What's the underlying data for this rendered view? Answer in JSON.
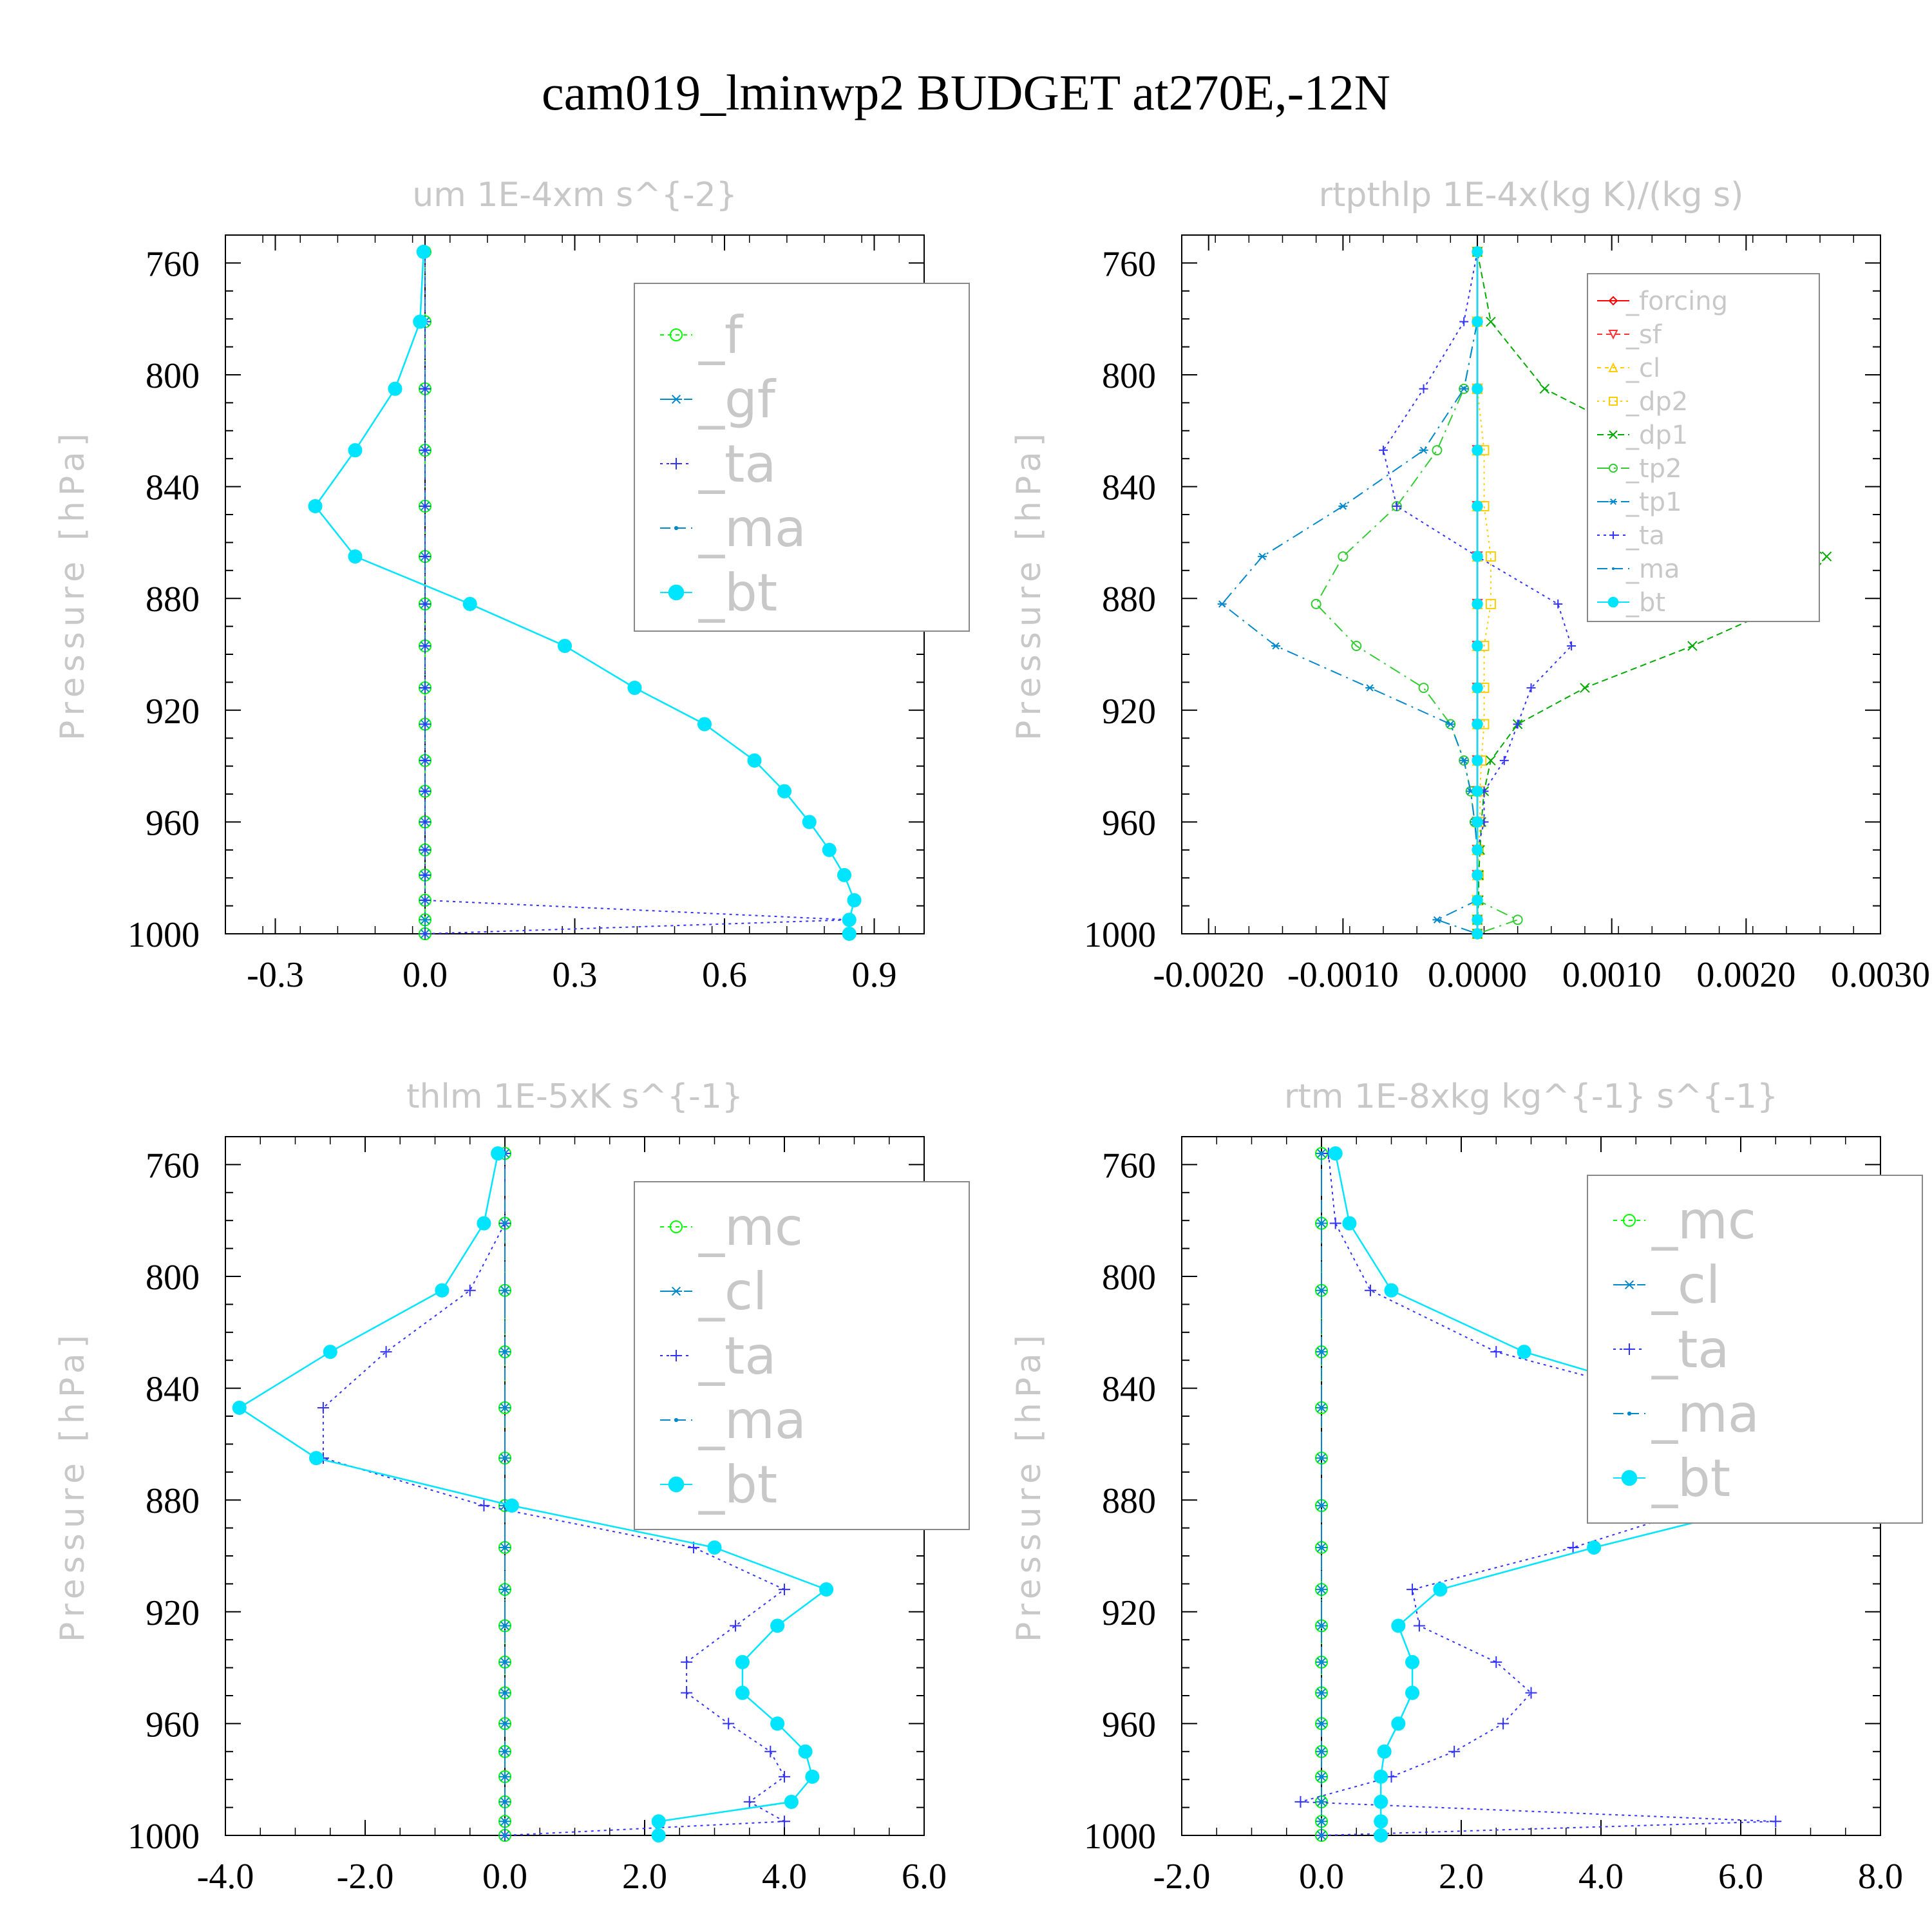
{
  "title": "cam019_lminwp2  BUDGET at270E,-12N",
  "colors": {
    "f": "#00ff00",
    "gf": "#0088cc",
    "ta": "#3333ff",
    "ma": "#0088cc",
    "bt": "#00e5ff",
    "forcing": "#ff0000",
    "sf": "#ff3333",
    "cl": "#ffcc00",
    "dp2": "#ffcc00",
    "dp1": "#00aa00",
    "tp2": "#33cc33",
    "tp1": "#0088cc",
    "mc": "#00ff00",
    "cl_blue": "#0088cc"
  },
  "chart_data": [
    {
      "type": "line",
      "title": "um   1E-4xm s^{-2}",
      "ylabel": "Pressure [hPa]",
      "xlim": [
        -0.4,
        1.0
      ],
      "ylim": [
        750,
        1000
      ],
      "y_reversed": true,
      "xticks": [
        "-0.3",
        "0.0",
        "0.3",
        "0.6",
        "0.9"
      ],
      "xtick_values": [
        -0.3,
        0.0,
        0.3,
        0.6,
        0.9
      ],
      "yticks": [
        "760",
        "800",
        "840",
        "880",
        "920",
        "960",
        "1000"
      ],
      "legend_position": "top-right",
      "legend_font": 80,
      "pressure": [
        756,
        781,
        805,
        827,
        847,
        865,
        882,
        897,
        912,
        925,
        938,
        949,
        960,
        970,
        979,
        988,
        995,
        1000
      ],
      "series": [
        {
          "name": "_f",
          "color": "#00ff00",
          "dash": "6,6",
          "marker": "circle-open",
          "values": [
            0,
            0,
            0,
            0,
            0,
            0,
            0,
            0,
            0,
            0,
            0,
            0,
            0,
            0,
            0,
            0,
            0,
            0
          ]
        },
        {
          "name": "_gf",
          "color": "#0088cc",
          "dash": "18,8,3,8",
          "marker": "star",
          "values": [
            0,
            0,
            0,
            0,
            0,
            0,
            0,
            0,
            0,
            0,
            0,
            0,
            0,
            0,
            0,
            0,
            0,
            0
          ]
        },
        {
          "name": "_ta",
          "color": "#3333ff",
          "dash": "4,6",
          "marker": "plus",
          "values": [
            0.0,
            0.0,
            0.0,
            0.0,
            0.0,
            0.0,
            0.0,
            0.0,
            0.0,
            0.0,
            0.0,
            0.0,
            0.0,
            0.0,
            0.0,
            0.0,
            0.85,
            0.0
          ]
        },
        {
          "name": "_ma",
          "color": "#0088cc",
          "dash": "16,8",
          "marker": "dot",
          "values": [
            -0.003,
            -0.01,
            -0.06,
            -0.14,
            -0.22,
            -0.14,
            0.09,
            0.28,
            0.42,
            0.56,
            0.66,
            0.72,
            0.77,
            0.81,
            0.84,
            0.86,
            0.85,
            0.85
          ]
        },
        {
          "name": "_bt",
          "color": "#00e5ff",
          "dash": "",
          "marker": "filled",
          "values": [
            -0.003,
            -0.01,
            -0.06,
            -0.14,
            -0.22,
            -0.14,
            0.09,
            0.28,
            0.42,
            0.56,
            0.66,
            0.72,
            0.77,
            0.81,
            0.84,
            0.86,
            0.85,
            0.85
          ]
        }
      ]
    },
    {
      "type": "line",
      "title": "rtpthlp   1E-4x(kg K)/(kg s)",
      "ylabel": "Pressure [hPa]",
      "xlim": [
        -0.0022,
        0.003
      ],
      "ylim": [
        750,
        1000
      ],
      "y_reversed": true,
      "xticks": [
        "-0.0020",
        "-0.0010",
        "0.0000",
        "0.0010",
        "0.0020",
        "0.0030"
      ],
      "xtick_values": [
        -0.002,
        -0.001,
        0.0,
        0.001,
        0.002,
        0.003
      ],
      "yticks": [
        "760",
        "800",
        "840",
        "880",
        "920",
        "960",
        "1000"
      ],
      "legend_position": "top-right",
      "legend_font": 40,
      "pressure": [
        756,
        781,
        805,
        827,
        847,
        865,
        882,
        897,
        912,
        925,
        938,
        949,
        960,
        970,
        979,
        988,
        995,
        1000
      ],
      "series": [
        {
          "name": "_forcing",
          "color": "#ff0000",
          "dash": "",
          "marker": "diamond",
          "values": [
            0,
            0,
            0,
            0,
            0,
            0,
            0,
            0,
            0,
            0,
            0,
            0,
            0,
            0,
            0,
            0,
            0,
            0
          ]
        },
        {
          "name": "_sf",
          "color": "#ff3333",
          "dash": "8,6",
          "marker": "tri-down",
          "values": [
            0,
            0,
            0,
            0,
            0,
            0,
            0,
            0,
            0,
            0,
            0,
            0,
            0,
            0,
            0,
            0,
            0,
            0
          ]
        },
        {
          "name": "_cl",
          "color": "#ffcc00",
          "dash": "6,6",
          "marker": "tri-up",
          "values": [
            0,
            0,
            0,
            0,
            0,
            0,
            0,
            0,
            0,
            0,
            0,
            0,
            0,
            0,
            0,
            0,
            0,
            0
          ]
        },
        {
          "name": "_dp2",
          "color": "#ffcc00",
          "dash": "3,6",
          "marker": "square",
          "values": [
            0,
            0,
            0,
            5e-05,
            5e-05,
            0.0001,
            0.0001,
            5e-05,
            5e-05,
            5e-05,
            3e-05,
            2e-05,
            2e-05,
            1e-05,
            1e-05,
            0,
            0,
            0
          ]
        },
        {
          "name": "_dp1",
          "color": "#00aa00",
          "dash": "10,6",
          "marker": "x",
          "values": [
            0.0,
            0.0001,
            0.0005,
            0.0014,
            0.002,
            0.0026,
            0.0023,
            0.0016,
            0.0008,
            0.0003,
            0.0001,
            5e-05,
            3e-05,
            2e-05,
            1e-05,
            1e-05,
            0.0,
            0.0
          ]
        },
        {
          "name": "_tp2",
          "color": "#33cc33",
          "dash": "18,8,3,8",
          "marker": "circle-open",
          "values": [
            0.0,
            0.0,
            -0.0001,
            -0.0003,
            -0.0006,
            -0.001,
            -0.0012,
            -0.0009,
            -0.0004,
            -0.0002,
            -0.0001,
            -5e-05,
            -2e-05,
            0.0,
            0.0,
            0.0,
            0.0003,
            0.0
          ]
        },
        {
          "name": "_tp1",
          "color": "#0088cc",
          "dash": "18,8,3,8",
          "marker": "star",
          "values": [
            0.0,
            0.0,
            -0.0001,
            -0.0004,
            -0.001,
            -0.0016,
            -0.0019,
            -0.0015,
            -0.0008,
            -0.0002,
            -0.0001,
            -5e-05,
            -2e-05,
            0.0,
            0.0,
            0.0,
            -0.0003,
            0.0
          ]
        },
        {
          "name": "_ta",
          "color": "#3333ff",
          "dash": "4,6",
          "marker": "plus",
          "values": [
            0.0,
            -0.0001,
            -0.0004,
            -0.0007,
            -0.0006,
            0.0,
            0.0006,
            0.0007,
            0.0004,
            0.0003,
            0.0002,
            5e-05,
            5e-05,
            0.0,
            0.0,
            0.0,
            0.0,
            0.0
          ]
        },
        {
          "name": "_ma",
          "color": "#0088cc",
          "dash": "16,8",
          "marker": "dot",
          "values": [
            0,
            0,
            0,
            0,
            0,
            0,
            0,
            0,
            0,
            0,
            0,
            0,
            0,
            0,
            0,
            0,
            0,
            0
          ]
        },
        {
          "name": "_bt",
          "color": "#00e5ff",
          "dash": "",
          "marker": "filled",
          "values": [
            0,
            0,
            0,
            0,
            0,
            0,
            0,
            0,
            0,
            0,
            0,
            0,
            0,
            0,
            0,
            0,
            0,
            0
          ]
        }
      ]
    },
    {
      "type": "line",
      "title": "thlm   1E-5xK s^{-1}",
      "ylabel": "Pressure [hPa]",
      "xlim": [
        -4.0,
        6.0
      ],
      "ylim": [
        750,
        1000
      ],
      "y_reversed": true,
      "xticks": [
        "-4.0",
        "-2.0",
        "0.0",
        "2.0",
        "4.0",
        "6.0"
      ],
      "xtick_values": [
        -4.0,
        -2.0,
        0.0,
        2.0,
        4.0,
        6.0
      ],
      "yticks": [
        "760",
        "800",
        "840",
        "880",
        "920",
        "960",
        "1000"
      ],
      "legend_position": "top-right",
      "legend_font": 80,
      "pressure": [
        756,
        781,
        805,
        827,
        847,
        865,
        882,
        897,
        912,
        925,
        938,
        949,
        960,
        970,
        979,
        988,
        995,
        1000
      ],
      "series": [
        {
          "name": "_mc",
          "color": "#00ff00",
          "dash": "6,6",
          "marker": "circle-open",
          "values": [
            0,
            0,
            0,
            0,
            0,
            0,
            0,
            0,
            0,
            0,
            0,
            0,
            0,
            0,
            0,
            0,
            0,
            0
          ]
        },
        {
          "name": "_cl",
          "color": "#0088cc",
          "dash": "18,8,3,8",
          "marker": "star",
          "values": [
            0,
            0,
            0,
            0,
            0,
            0,
            0,
            0,
            0,
            0,
            0,
            0,
            0,
            0,
            0,
            0,
            0,
            0
          ]
        },
        {
          "name": "_ta",
          "color": "#3333ff",
          "dash": "4,6",
          "marker": "plus",
          "values": [
            0.0,
            0.0,
            -0.5,
            -1.7,
            -2.6,
            -2.6,
            -0.3,
            2.7,
            4.0,
            3.3,
            2.6,
            2.6,
            3.2,
            3.8,
            4.0,
            3.5,
            4.0,
            0.0
          ]
        },
        {
          "name": "_ma",
          "color": "#0088cc",
          "dash": "16,8",
          "marker": "dot",
          "values": [
            0,
            0,
            0,
            0,
            0,
            0,
            0,
            0,
            0,
            0,
            0,
            0,
            0,
            0,
            0,
            0,
            0,
            0
          ]
        },
        {
          "name": "_bt",
          "color": "#00e5ff",
          "dash": "",
          "marker": "filled",
          "values": [
            -0.1,
            -0.3,
            -0.9,
            -2.5,
            -3.8,
            -2.7,
            0.1,
            3.0,
            4.6,
            3.9,
            3.4,
            3.4,
            3.9,
            4.3,
            4.4,
            4.1,
            2.2,
            2.2
          ]
        }
      ]
    },
    {
      "type": "line",
      "title": "rtm   1E-8xkg kg^{-1} s^{-1}",
      "ylabel": "Pressure [hPa]",
      "xlim": [
        -2.0,
        8.0
      ],
      "ylim": [
        750,
        1000
      ],
      "y_reversed": true,
      "xticks": [
        "-2.0",
        "0.0",
        "2.0",
        "4.0",
        "6.0",
        "8.0"
      ],
      "xtick_values": [
        -2.0,
        0.0,
        2.0,
        4.0,
        6.0,
        8.0
      ],
      "yticks": [
        "760",
        "800",
        "840",
        "880",
        "920",
        "960",
        "1000"
      ],
      "legend_position": "top-right",
      "legend_font": 80,
      "pressure": [
        756,
        781,
        805,
        827,
        847,
        865,
        882,
        897,
        912,
        925,
        938,
        949,
        960,
        970,
        979,
        988,
        995,
        1000
      ],
      "series": [
        {
          "name": "_mc",
          "color": "#00ff00",
          "dash": "6,6",
          "marker": "circle-open",
          "values": [
            0,
            0,
            0,
            0,
            0,
            0,
            0,
            0,
            0,
            0,
            0,
            0,
            0,
            0,
            0,
            0,
            0,
            0
          ]
        },
        {
          "name": "_cl",
          "color": "#0088cc",
          "dash": "18,8,3,8",
          "marker": "star",
          "values": [
            0,
            0,
            0,
            0,
            0,
            0,
            0,
            0,
            0,
            0,
            0,
            0,
            0,
            0,
            0,
            0,
            0,
            0
          ]
        },
        {
          "name": "_ta",
          "color": "#3333ff",
          "dash": "4,6",
          "marker": "plus",
          "values": [
            0.1,
            0.2,
            0.7,
            2.5,
            5.5,
            6.3,
            5.5,
            3.6,
            1.3,
            1.4,
            2.5,
            3.0,
            2.6,
            1.9,
            1.0,
            -0.3,
            6.5,
            0.0
          ]
        },
        {
          "name": "_ma",
          "color": "#0088cc",
          "dash": "16,8",
          "marker": "dot",
          "values": [
            0,
            0,
            0,
            0,
            0,
            0,
            0,
            0,
            0,
            0,
            0,
            0,
            0,
            0,
            0,
            0,
            0,
            0
          ]
        },
        {
          "name": "_bt",
          "color": "#00e5ff",
          "dash": "",
          "marker": "filled",
          "values": [
            0.2,
            0.4,
            1.0,
            2.9,
            5.6,
            6.8,
            6.3,
            3.9,
            1.7,
            1.1,
            1.3,
            1.3,
            1.1,
            0.9,
            0.85,
            0.85,
            0.85,
            0.85
          ]
        }
      ]
    }
  ]
}
